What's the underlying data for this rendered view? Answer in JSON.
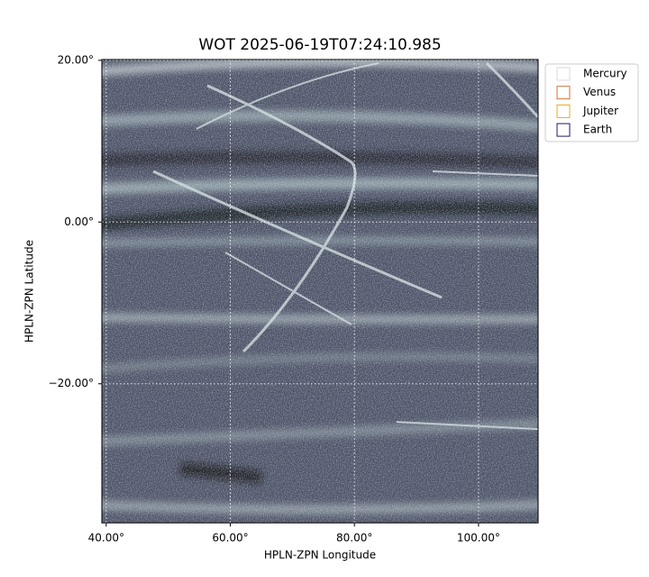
{
  "chart_data": {
    "type": "image",
    "title": "WOT 2025-06-19T07:24:10.985",
    "x_label": "HPLN-ZPN Longitude",
    "y_label": "HPLN-ZPN Latitude",
    "xlim": [
      39.3,
      109.6
    ],
    "ylim": [
      -37.2,
      20.1
    ],
    "xticks": [
      {
        "value": 40,
        "label": "40.00°"
      },
      {
        "value": 60,
        "label": "60.00°"
      },
      {
        "value": 80,
        "label": "80.00°"
      },
      {
        "value": 100,
        "label": "100.00°"
      }
    ],
    "yticks": [
      {
        "value": 20,
        "label": "20.00°"
      },
      {
        "value": 0,
        "label": "0.00°"
      },
      {
        "value": -20,
        "label": "−20.00°"
      }
    ],
    "grid": true,
    "legend_position": "outside upper right",
    "series": [
      {
        "name": "Mercury",
        "color": "#d9d9d9"
      },
      {
        "name": "Venus",
        "color": "#d2703a"
      },
      {
        "name": "Jupiter",
        "color": "#e6ac1e"
      },
      {
        "name": "Earth",
        "color": "#1b1b6b"
      }
    ]
  }
}
